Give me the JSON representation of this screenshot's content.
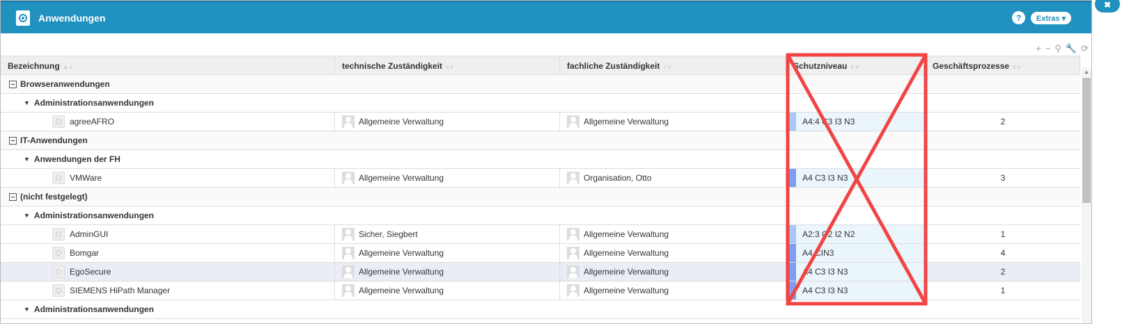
{
  "window": {
    "title": "Anwendungen",
    "help_label": "?",
    "extras_label": "Extras ▾",
    "close_label": "✖"
  },
  "toolbar": {
    "icons": [
      "plus-icon",
      "minus-icon",
      "search-icon",
      "wrench-icon",
      "refresh-icon"
    ],
    "glyphs": [
      "+",
      "−",
      "⚲",
      "🔧",
      "⟳"
    ]
  },
  "columns": [
    "Bezeichnung",
    "technische Zuständigkeit",
    "fachliche Zuständigkeit",
    "Schutzniveau",
    "Geschäftsprozesse"
  ],
  "colors": {
    "header": "#2191c0",
    "bar_light": "#a9c8f7",
    "bar_dark": "#7f9ef0",
    "overlay": "#f24444"
  },
  "rows": [
    {
      "type": "group",
      "label": "Browseranwendungen"
    },
    {
      "type": "sub",
      "label": "Administrationsanwendungen"
    },
    {
      "type": "item",
      "name": "agreeAFRO",
      "tech": "Allgemeine Verwaltung",
      "fach": "Allgemeine Verwaltung",
      "schutz": "A4:4 C3 I3 N3",
      "level": "light",
      "gp": "2"
    },
    {
      "type": "group",
      "label": "IT-Anwendungen"
    },
    {
      "type": "sub",
      "label": "Anwendungen der FH"
    },
    {
      "type": "item",
      "name": "VMWare",
      "tech": "Allgemeine Verwaltung",
      "fach": "Organisation, Otto",
      "schutz": "A4 C3 I3 N3",
      "level": "dark",
      "gp": "3"
    },
    {
      "type": "group",
      "label": "(nicht festgelegt)"
    },
    {
      "type": "sub",
      "label": "Administrationsanwendungen"
    },
    {
      "type": "item",
      "name": "AdminGUI",
      "tech": "Sicher, Siegbert",
      "fach": "Allgemeine Verwaltung",
      "schutz": "A2:3 C2 I2 N2",
      "level": "light",
      "gp": "1"
    },
    {
      "type": "item",
      "name": "Bomgar",
      "tech": "Allgemeine Verwaltung",
      "fach": "Allgemeine Verwaltung",
      "schutz": "A4 CIN3",
      "level": "dark",
      "gp": "4"
    },
    {
      "type": "item",
      "name": "EgoSecure",
      "tech": "Allgemeine Verwaltung",
      "fach": "Allgemeine Verwaltung",
      "schutz": "A4 C3 I3 N3",
      "level": "dark",
      "gp": "2",
      "selected": true
    },
    {
      "type": "item",
      "name": "SIEMENS HiPath Manager",
      "tech": "Allgemeine Verwaltung",
      "fach": "Allgemeine Verwaltung",
      "schutz": "A4 C3 I3 N3",
      "level": "dark",
      "gp": "1"
    },
    {
      "type": "sub",
      "label": "Administrationsanwendungen"
    }
  ]
}
